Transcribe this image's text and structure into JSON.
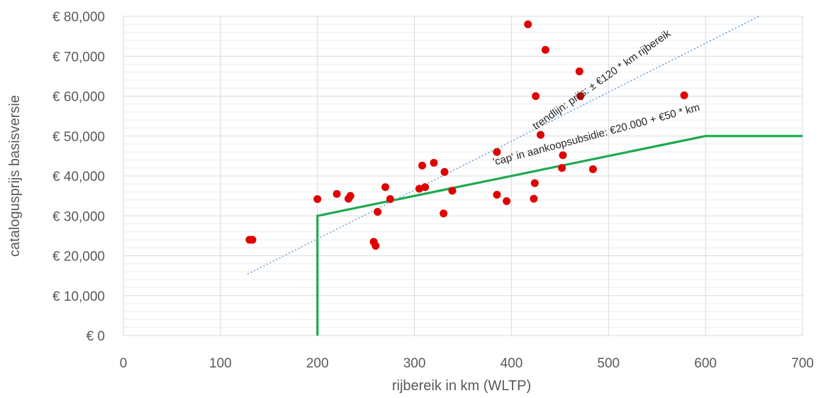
{
  "chart_data": {
    "type": "scatter",
    "title": "",
    "xlabel": "rijbereik in km (WLTP)",
    "ylabel": "catalogusprijs basisversie",
    "xlim": [
      0,
      700
    ],
    "ylim": [
      0,
      80000
    ],
    "x_ticks": [
      "0",
      "100",
      "200",
      "300",
      "400",
      "500",
      "600",
      "700"
    ],
    "y_ticks": [
      "€ 0",
      "€ 10,000",
      "€ 20,000",
      "€ 30,000",
      "€ 40,000",
      "€ 50,000",
      "€ 60,000",
      "€ 70,000",
      "€ 80,000"
    ],
    "grid": true,
    "legend": "none",
    "colors": {
      "points": "#e00000",
      "cap_line": "#1faa4f",
      "trend_line": "#5b9bd5",
      "grid": "#d9d9d9"
    },
    "series": [
      {
        "kind": "points",
        "points": [
          [
            130,
            24000
          ],
          [
            133,
            24000
          ],
          [
            200,
            34200
          ],
          [
            220,
            35500
          ],
          [
            232,
            34300
          ],
          [
            234,
            35000
          ],
          [
            258,
            23500
          ],
          [
            260,
            22500
          ],
          [
            262,
            31000
          ],
          [
            270,
            37200
          ],
          [
            275,
            34200
          ],
          [
            305,
            36800
          ],
          [
            308,
            42600
          ],
          [
            311,
            37200
          ],
          [
            320,
            43300
          ],
          [
            330,
            30600
          ],
          [
            331,
            41000
          ],
          [
            339,
            36300
          ],
          [
            385,
            46000
          ],
          [
            385,
            35300
          ],
          [
            395,
            33700
          ],
          [
            417,
            78000
          ],
          [
            423,
            34300
          ],
          [
            424,
            38200
          ],
          [
            425,
            60000
          ],
          [
            430,
            50300
          ],
          [
            435,
            71600
          ],
          [
            452,
            42000
          ],
          [
            453,
            45200
          ],
          [
            470,
            66200
          ],
          [
            471,
            60000
          ],
          [
            484,
            41700
          ],
          [
            578,
            60200
          ]
        ]
      },
      {
        "kind": "cap_line",
        "points": [
          [
            200,
            0
          ],
          [
            200,
            30000
          ],
          [
            600,
            50000
          ],
          [
            700,
            50000
          ]
        ]
      },
      {
        "kind": "trend_line",
        "points": [
          [
            128,
            15400
          ],
          [
            655,
            80000
          ]
        ]
      }
    ],
    "annotations": [
      {
        "text": "trendlijn: prijs: ± €120 * km rijbereik",
        "anchor": [
          425,
          51500
        ],
        "angle": -35
      },
      {
        "text": "'cap' in aankoopsubsidie: €20.000 + €50 * km",
        "anchor": [
          382,
          42600
        ],
        "angle": -15
      }
    ]
  }
}
